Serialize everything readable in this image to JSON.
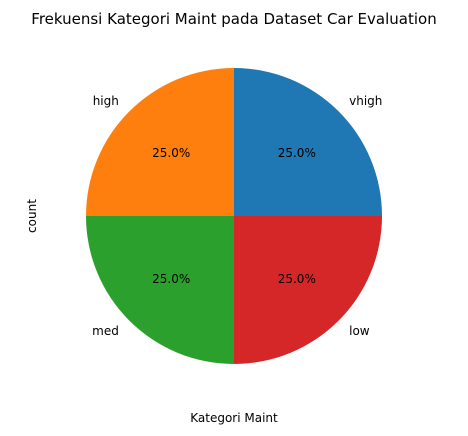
{
  "chart_data": {
    "type": "pie",
    "title": "Frekuensi Kategori Maint pada Dataset Car Evaluation",
    "xlabel": "Kategori Maint",
    "ylabel": "count",
    "categories": [
      "vhigh",
      "high",
      "med",
      "low"
    ],
    "values": [
      432,
      432,
      432,
      432
    ],
    "percent_labels": [
      "25.0%",
      "25.0%",
      "25.0%",
      "25.0%"
    ],
    "colors": [
      "#1f77b4",
      "#ff7f0e",
      "#2ca02c",
      "#d62728"
    ],
    "start_angle_deg": 0,
    "direction": "counterclockwise",
    "legend": "none"
  }
}
